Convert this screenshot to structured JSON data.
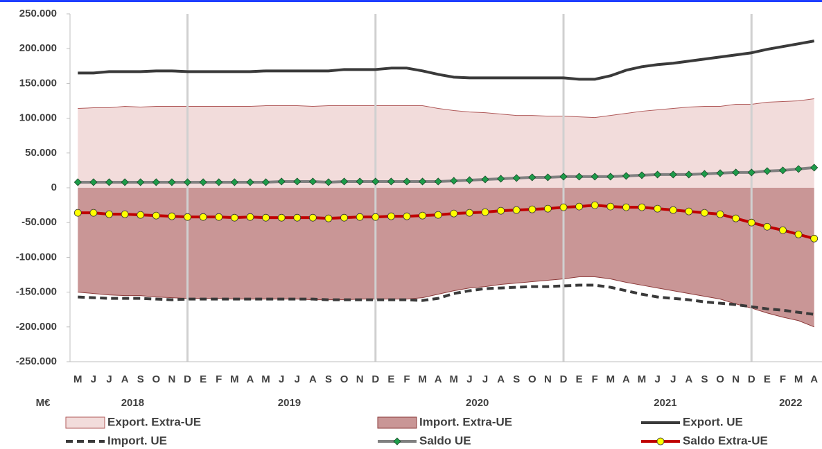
{
  "chart_data": {
    "type": "line",
    "categories": [
      "M",
      "J",
      "J",
      "A",
      "S",
      "O",
      "N",
      "D",
      "E",
      "F",
      "M",
      "A",
      "M",
      "J",
      "J",
      "A",
      "S",
      "O",
      "N",
      "D",
      "E",
      "F",
      "M",
      "A",
      "M",
      "J",
      "J",
      "A",
      "S",
      "O",
      "N",
      "D",
      "E",
      "F",
      "M",
      "A",
      "M",
      "J",
      "J",
      "A",
      "S",
      "O",
      "N",
      "D",
      "E",
      "F",
      "M",
      "A"
    ],
    "x_groups": [
      {
        "label": "2018",
        "count": 8
      },
      {
        "label": "2019",
        "count": 12
      },
      {
        "label": "2020",
        "count": 12
      },
      {
        "label": "2021",
        "count": 12
      },
      {
        "label": "2022",
        "count": 4
      }
    ],
    "unit_label": "M€",
    "ylim": [
      -250000,
      250000
    ],
    "yticks": [
      {
        "value": -250000,
        "label": "-250.000"
      },
      {
        "value": -200000,
        "label": "-200.000"
      },
      {
        "value": -150000,
        "label": "-150.000"
      },
      {
        "value": -100000,
        "label": "-100.000"
      },
      {
        "value": -50000,
        "label": "-50.000"
      },
      0,
      {
        "value": 50000,
        "label": "50.000"
      },
      {
        "value": 100000,
        "label": "100.000"
      },
      {
        "value": 150000,
        "label": "150.000"
      },
      {
        "value": 200000,
        "label": "200.000"
      },
      {
        "value": 250000,
        "label": "250.000"
      }
    ],
    "group_separators": true,
    "series": [
      {
        "name": "Export. Extra-UE",
        "kind": "area",
        "color": "#f2dcdb",
        "edge_color": "#b05a5a",
        "values": [
          114000,
          115000,
          115000,
          117000,
          116000,
          117000,
          117000,
          117000,
          117000,
          117000,
          117000,
          117000,
          118000,
          118000,
          118000,
          117000,
          118000,
          118000,
          118000,
          118000,
          118000,
          118000,
          118000,
          114000,
          111000,
          109000,
          108000,
          106000,
          104000,
          104000,
          103000,
          103000,
          102000,
          101000,
          104000,
          107000,
          110000,
          112000,
          114000,
          116000,
          117000,
          117000,
          120000,
          120000,
          123000,
          124000,
          125000,
          128000
        ]
      },
      {
        "name": "Import. Extra-UE",
        "kind": "area",
        "color": "#c99696",
        "edge_color": "#8b3a3a",
        "values": [
          -150000,
          -152000,
          -154000,
          -155000,
          -155000,
          -157000,
          -158000,
          -159000,
          -159000,
          -159000,
          -160000,
          -160000,
          -160000,
          -160000,
          -160000,
          -161000,
          -161000,
          -161000,
          -160000,
          -160000,
          -160000,
          -160000,
          -158000,
          -153000,
          -148000,
          -144000,
          -142000,
          -139000,
          -137000,
          -135000,
          -133000,
          -131000,
          -128000,
          -128000,
          -131000,
          -136000,
          -140000,
          -144000,
          -148000,
          -152000,
          -156000,
          -160000,
          -167000,
          -173000,
          -180000,
          -186000,
          -191000,
          -200000
        ]
      },
      {
        "name": "Export. UE",
        "kind": "line",
        "color": "#3a3a3a",
        "dash": false,
        "values": [
          165000,
          165000,
          167000,
          167000,
          167000,
          168000,
          168000,
          167000,
          167000,
          167000,
          167000,
          167000,
          168000,
          168000,
          168000,
          168000,
          168000,
          170000,
          170000,
          170000,
          172000,
          172000,
          168000,
          163000,
          159000,
          158000,
          158000,
          158000,
          158000,
          158000,
          158000,
          158000,
          156000,
          156000,
          161000,
          169000,
          174000,
          177000,
          179000,
          182000,
          185000,
          188000,
          191000,
          194000,
          199000,
          203000,
          207000,
          211000
        ]
      },
      {
        "name": "Import. UE",
        "kind": "line",
        "color": "#3a3a3a",
        "dash": true,
        "values": [
          -157000,
          -158000,
          -159000,
          -159000,
          -159000,
          -160000,
          -161000,
          -160000,
          -160000,
          -160000,
          -160000,
          -160000,
          -160000,
          -160000,
          -160000,
          -160000,
          -161000,
          -161000,
          -161000,
          -161000,
          -161000,
          -161000,
          -162000,
          -159000,
          -152000,
          -148000,
          -145000,
          -144000,
          -143000,
          -142000,
          -142000,
          -141000,
          -140000,
          -140000,
          -143000,
          -148000,
          -153000,
          -157000,
          -159000,
          -161000,
          -164000,
          -166000,
          -168000,
          -171000,
          -174000,
          -176000,
          -179000,
          -182000
        ]
      },
      {
        "name": "Saldo UE",
        "kind": "line",
        "color": "#808080",
        "dash": false,
        "marker": "diamond",
        "marker_color": "#1e9c4a",
        "values": [
          8000,
          8000,
          8000,
          8000,
          8000,
          8000,
          8000,
          8000,
          8000,
          8000,
          8000,
          8000,
          8000,
          9000,
          9000,
          9000,
          8000,
          9000,
          9000,
          9000,
          9000,
          9000,
          9000,
          9000,
          10000,
          11000,
          12000,
          13000,
          14000,
          15000,
          15000,
          16000,
          16000,
          16000,
          16000,
          17000,
          18000,
          19000,
          19000,
          19000,
          20000,
          21000,
          22000,
          22000,
          24000,
          25000,
          27000,
          29000
        ]
      },
      {
        "name": "Saldo Extra-UE",
        "kind": "line",
        "color": "#c00000",
        "dash": false,
        "marker": "circle",
        "marker_color": "#ffff00",
        "values": [
          -36000,
          -36000,
          -38000,
          -38000,
          -39000,
          -40000,
          -41000,
          -42000,
          -42000,
          -42000,
          -43000,
          -42000,
          -43000,
          -43000,
          -43000,
          -43000,
          -44000,
          -43000,
          -42000,
          -42000,
          -41000,
          -41000,
          -40000,
          -39000,
          -37000,
          -36000,
          -35000,
          -33000,
          -32000,
          -31000,
          -30000,
          -28000,
          -27000,
          -25000,
          -27000,
          -28000,
          -28000,
          -30000,
          -32000,
          -34000,
          -36000,
          -38000,
          -44000,
          -50000,
          -56000,
          -61000,
          -67000,
          -73000
        ]
      }
    ]
  }
}
